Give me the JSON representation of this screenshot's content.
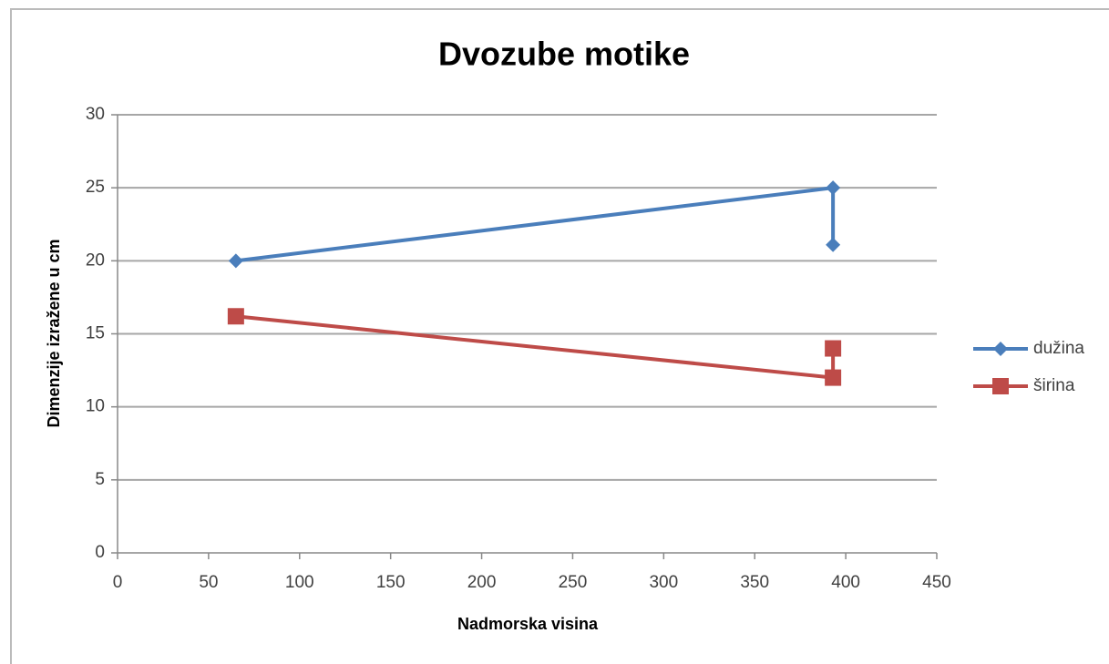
{
  "chart_data": {
    "type": "scatter",
    "title": "Dvozube motike",
    "x_label": "Nadmorska visina",
    "y_label": "Dimenzije izražene u cm",
    "series": [
      {
        "name": "dužina",
        "color": "#4a7ebb",
        "marker": "diamond",
        "x": [
          65,
          393,
          393
        ],
        "values": [
          20,
          25,
          21.1
        ]
      },
      {
        "name": "širina",
        "color": "#be4b48",
        "marker": "square",
        "x": [
          65,
          393,
          393
        ],
        "values": [
          16.2,
          12,
          14
        ]
      }
    ],
    "xlim": [
      0,
      450
    ],
    "xticks": [
      0,
      50,
      100,
      150,
      200,
      250,
      300,
      350,
      400,
      450
    ],
    "ylim": [
      0,
      30
    ],
    "yticks": [
      0,
      5,
      10,
      15,
      20,
      25,
      30
    ],
    "grid": true,
    "legend": "right"
  }
}
